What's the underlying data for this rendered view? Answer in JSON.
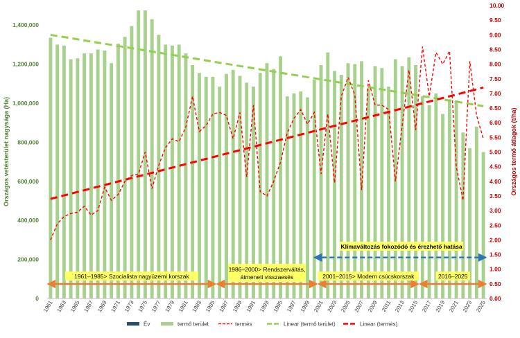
{
  "chart_data": {
    "type": "bar+line",
    "y_left_label": "Országos vetésterület nagysága (Ha)",
    "y_right_label": "Országos termő átlagok (t/ha)",
    "y_left_range": [
      0,
      1500000
    ],
    "y_right_range": [
      0,
      10
    ],
    "y_left_ticks": [
      0,
      200000,
      400000,
      600000,
      800000,
      1000000,
      1200000,
      1400000
    ],
    "y_left_tick_labels": [
      "0",
      "200,000",
      "400,000",
      "600,000",
      "800,000",
      "1,000,000",
      "1,200,000",
      "1,400,000"
    ],
    "y_right_ticks": [
      0,
      0.5,
      1,
      1.5,
      2,
      2.5,
      3,
      3.5,
      4,
      4.5,
      5,
      5.5,
      6,
      6.5,
      7,
      7.5,
      8,
      8.5,
      9,
      9.5,
      10
    ],
    "y_right_tick_labels": [
      "0.00",
      "0.50",
      "1.00",
      "1.50",
      "2.00",
      "2.50",
      "3.00",
      "3.50",
      "4.00",
      "4.50",
      "5.00",
      "5.50",
      "6.00",
      "6.50",
      "7.00",
      "7.50",
      "8.00",
      "8.50",
      "9.00",
      "9.50",
      "10.00"
    ],
    "x_tick_labels": [
      "1961",
      "1963",
      "1965",
      "1967",
      "1969",
      "1971",
      "1973",
      "1975",
      "1977",
      "1979",
      "1981",
      "1983",
      "1985",
      "1987",
      "1989",
      "1991",
      "1993",
      "1995",
      "1997",
      "1999",
      "2001",
      "2003",
      "2005",
      "2007",
      "2009",
      "2011",
      "2013",
      "2015",
      "2017",
      "2019",
      "2021",
      "2023",
      "2025"
    ],
    "years": [
      1961,
      1962,
      1963,
      1964,
      1965,
      1966,
      1967,
      1968,
      1969,
      1970,
      1971,
      1972,
      1973,
      1974,
      1975,
      1976,
      1977,
      1978,
      1979,
      1980,
      1981,
      1982,
      1983,
      1984,
      1985,
      1986,
      1987,
      1988,
      1989,
      1990,
      1991,
      1992,
      1993,
      1994,
      1995,
      1996,
      1997,
      1998,
      1999,
      2000,
      2001,
      2002,
      2003,
      2004,
      2005,
      2006,
      2007,
      2008,
      2009,
      2010,
      2011,
      2012,
      2013,
      2014,
      2015,
      2016,
      2017,
      2018,
      2019,
      2020,
      2021,
      2022,
      2023,
      2024,
      2025
    ],
    "series": [
      {
        "name": "termő terület",
        "type": "bar",
        "axis": "left",
        "color": "#a9d18e",
        "values": [
          1335000,
          1300000,
          1295000,
          1225000,
          1230000,
          1255000,
          1255000,
          1275000,
          1270000,
          1205000,
          1305000,
          1340000,
          1395000,
          1475000,
          1475000,
          1430000,
          1350000,
          1300000,
          1295000,
          1300000,
          1255000,
          1195000,
          1155000,
          1135000,
          1135000,
          1085000,
          1150000,
          1170000,
          1140000,
          1105000,
          1085000,
          1155000,
          1205000,
          1175000,
          1240000,
          1035000,
          1050000,
          1060000,
          1030000,
          1120000,
          1195000,
          1260000,
          1165000,
          1145000,
          1205000,
          1200000,
          1215000,
          1075000,
          1190000,
          1180000,
          1085000,
          1225000,
          1190000,
          1235000,
          1195000,
          1035000,
          990000,
          1050000,
          945000,
          1020000,
          1015000,
          850000,
          770000,
          880000,
          750000
        ]
      },
      {
        "name": "termés",
        "type": "line",
        "axis": "right",
        "color": "#ff0000",
        "dash": "short",
        "values": [
          2.0,
          2.55,
          2.8,
          2.9,
          2.95,
          3.15,
          2.85,
          3.0,
          3.8,
          3.35,
          3.55,
          4.0,
          4.2,
          4.25,
          5.0,
          3.75,
          4.55,
          5.15,
          5.45,
          5.35,
          5.85,
          6.9,
          5.7,
          5.9,
          6.3,
          6.35,
          6.25,
          5.45,
          6.35,
          4.15,
          6.6,
          3.65,
          3.5,
          4.0,
          4.65,
          5.65,
          6.15,
          6.45,
          5.95,
          6.35,
          4.25,
          6.3,
          3.95,
          6.9,
          7.55,
          6.95,
          3.7,
          7.45,
          6.6,
          6.6,
          6.45,
          4.0,
          5.9,
          7.8,
          5.75,
          8.6,
          6.9,
          8.4,
          8.0,
          8.45,
          4.5,
          3.35,
          8.1,
          6.25,
          5.45
        ]
      },
      {
        "name": "Linear (termő terület)",
        "type": "trendline",
        "axis": "left",
        "color": "#92d050",
        "dash": "long",
        "from": [
          1961,
          1350000
        ],
        "to": [
          2025,
          985000
        ]
      },
      {
        "name": "Linear (termés)",
        "type": "trendline",
        "axis": "right",
        "color": "#ff0000",
        "dash": "long",
        "from": [
          1961,
          3.4
        ],
        "to": [
          2025,
          7.2
        ]
      }
    ],
    "legend": [
      {
        "label": "Év",
        "kind": "bar",
        "color": "#1f4e79"
      },
      {
        "label": "termő terület",
        "kind": "bar",
        "color": "#a9d18e"
      },
      {
        "label": "termés",
        "kind": "dash",
        "color": "#ff0000"
      },
      {
        "label": "Linear (termő terület)",
        "kind": "longdash",
        "color": "#92d050"
      },
      {
        "label": "Linear (termés)",
        "kind": "longdash",
        "color": "#ff0000"
      }
    ],
    "legend_position": "bottom",
    "annotations": [
      {
        "text": "1961–1985> Szocialista nagyüzemi korszak",
        "start": 1961,
        "end": 1985,
        "level": 0.2
      },
      {
        "text": "1986–2000> Rendszerváltás, átmeneti visszaesés",
        "line1": "1986–2000> Rendszerváltás,",
        "line2": "átmeneti visszaesés",
        "start": 1986,
        "end": 2000,
        "level": 0.2
      },
      {
        "text": "2001–2015> Modern csúcskorszak",
        "start": 2001,
        "end": 2015,
        "level": 0.2
      },
      {
        "text": "2016–2025",
        "start": 2016,
        "end": 2025,
        "level": 0.2
      }
    ],
    "climate_annotation": {
      "text": "Klímaváltozás fokozódó és érezhető hatása",
      "start": 2000,
      "end": 2025,
      "value": 1.4,
      "axis": "right"
    },
    "annotation_color": "#ed7d31",
    "climate_color": "#2e75b6",
    "left_axis_color": "#548235",
    "right_axis_color": "#c00000"
  }
}
